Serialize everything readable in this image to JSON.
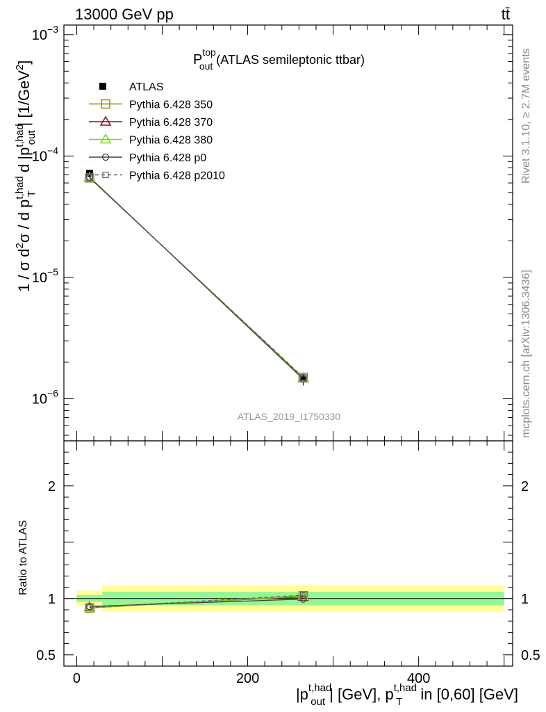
{
  "header": {
    "beam_label": "13000 GeV pp",
    "process_label": "tt̄"
  },
  "main_plot": {
    "title_main": "P",
    "title_sup": "top",
    "title_sub": "out",
    "title_rest": " (ATLAS semileptonic ttbar)",
    "analysis_id": "ATLAS_2019_I1750330"
  },
  "side_labels": {
    "rivet": "Rivet 3.1.10, ≥ 2.7M events",
    "mcplots": "mcplots.cern.ch [arXiv:1306.3436]"
  },
  "axis_text": {
    "ylabel": "1 / σ d²σ / d p_T^{t,had} d |p_out^{t,had}| [1/GeV²]",
    "ratio_ylabel": "Ratio to ATLAS",
    "xlabel": "|p_out^{t,had}| [GeV], p_T^{t,had} in [0,60] [GeV]"
  },
  "colors": {
    "data": "#000000",
    "p350": "#8c8c14",
    "p370": "#8c0a1e",
    "p380": "#7ad61c",
    "p0": "#404040",
    "p2010": "#606060",
    "band_inner": "#96f596",
    "band_outer": "#ffff96"
  },
  "chart_data": {
    "type": "line",
    "xlabel": "|p_out^{t,had}| [GeV], p_T^{t,had} in [0,60] [GeV]",
    "ylabel": "1 / σ d²σ / d p_T^{t,had} d |p_out^{t,had}| [1/GeV²]",
    "xlim": [
      -15,
      510
    ],
    "ylim": [
      4.5e-07,
      0.0012
    ],
    "yscale": "log",
    "x_ticks": [
      0,
      200,
      400
    ],
    "x_tick_labels": [
      "0",
      "200",
      "400"
    ],
    "y_ticks": [
      1e-06,
      1e-05,
      0.0001,
      0.001
    ],
    "y_tick_labels": [
      {
        "base": "10",
        "exp": "−6"
      },
      {
        "base": "10",
        "exp": "−5"
      },
      {
        "base": "10",
        "exp": "−4"
      },
      {
        "base": "10",
        "exp": "−3"
      }
    ],
    "bins": [
      [
        0,
        30
      ],
      [
        30,
        500
      ]
    ],
    "x": [
      15,
      265
    ],
    "legend_placement": "top-left",
    "data_series": {
      "name": "ATLAS",
      "values": [
        7.2e-05,
        1.46e-06
      ],
      "rel_err_inner": [
        0.03,
        0.06
      ],
      "rel_err_outer": [
        0.07,
        0.12
      ]
    },
    "series": [
      {
        "name": "Pythia 6.428 350",
        "key": "p350",
        "values": [
          6.6e-05,
          1.5e-06
        ],
        "ratio": [
          0.915,
          1.025
        ],
        "marker": "square",
        "dash": "solid"
      },
      {
        "name": "Pythia 6.428 370",
        "key": "p370",
        "values": [
          6.65e-05,
          1.48e-06
        ],
        "ratio": [
          0.925,
          1.015
        ],
        "marker": "triangle",
        "dash": "solid"
      },
      {
        "name": "Pythia 6.428 380",
        "key": "p380",
        "values": [
          6.62e-05,
          1.49e-06
        ],
        "ratio": [
          0.92,
          1.02
        ],
        "marker": "triangle",
        "dash": "solid"
      },
      {
        "name": "Pythia 6.428 p0",
        "key": "p0",
        "values": [
          6.7e-05,
          1.45e-06
        ],
        "ratio": [
          0.93,
          0.995
        ],
        "marker": "circle",
        "dash": "solid"
      },
      {
        "name": "Pythia 6.428 p2010",
        "key": "p2010",
        "values": [
          6.6e-05,
          1.5e-06
        ],
        "ratio": [
          0.92,
          1.03
        ],
        "marker": "square-small",
        "dash": "dashed"
      }
    ],
    "ratio_panel": {
      "ylim": [
        0.4,
        2.4
      ],
      "y_ticks": [
        0.5,
        1,
        2
      ],
      "y_tick_labels": [
        "0.5",
        "1",
        "2"
      ]
    }
  }
}
